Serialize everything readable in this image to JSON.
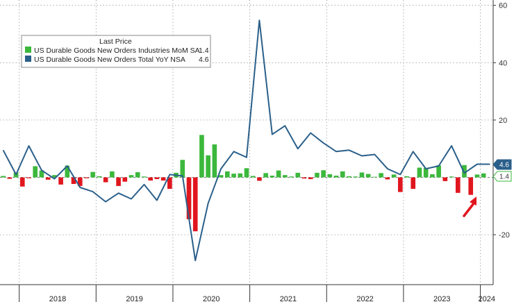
{
  "chart_data": {
    "type": "bar+line",
    "legend": {
      "title": "Last Price",
      "placement": "top-left",
      "entries": [
        {
          "name": "US Durable Goods New Orders Industries MoM SA",
          "value": "1.4",
          "color": "#3cb83c"
        },
        {
          "name": "US Durable Goods New Orders Total YoY NSA",
          "value": "4.6",
          "color": "#2a5f8a"
        }
      ]
    },
    "y_axis": {
      "position": "right",
      "ylim": [
        -37,
        62
      ],
      "ticks": [
        "60",
        "40",
        "20",
        "-20"
      ],
      "grid": true
    },
    "x_axis": {
      "years": [
        "2018",
        "2019",
        "2020",
        "2021",
        "2022",
        "2023",
        "2024"
      ],
      "start": "2017-10",
      "end": "2024-02"
    },
    "series": [
      {
        "name": "US Durable Goods New Orders Industries MoM SA",
        "type": "bar",
        "positive_color": "#3cb83c",
        "negative_color": "#e0161e",
        "x": [
          "2017-10",
          "2017-11",
          "2017-12",
          "2018-01",
          "2018-02",
          "2018-03",
          "2018-04",
          "2018-05",
          "2018-06",
          "2018-07",
          "2018-08",
          "2018-09",
          "2018-10",
          "2018-11",
          "2018-12",
          "2019-01",
          "2019-02",
          "2019-03",
          "2019-04",
          "2019-05",
          "2019-06",
          "2019-07",
          "2019-08",
          "2019-09",
          "2019-10",
          "2019-11",
          "2019-12",
          "2020-01",
          "2020-02",
          "2020-03",
          "2020-04",
          "2020-05",
          "2020-06",
          "2020-07",
          "2020-08",
          "2020-09",
          "2020-10",
          "2020-11",
          "2020-12",
          "2021-01",
          "2021-02",
          "2021-03",
          "2021-04",
          "2021-05",
          "2021-06",
          "2021-07",
          "2021-08",
          "2021-09",
          "2021-10",
          "2021-11",
          "2021-12",
          "2022-01",
          "2022-02",
          "2022-03",
          "2022-04",
          "2022-05",
          "2022-06",
          "2022-07",
          "2022-08",
          "2022-09",
          "2022-10",
          "2022-11",
          "2022-12",
          "2023-01",
          "2023-02",
          "2023-03",
          "2023-04",
          "2023-05",
          "2023-06",
          "2023-07",
          "2023-08",
          "2023-09",
          "2023-10",
          "2023-11",
          "2023-12",
          "2024-01"
        ],
        "values": [
          0.5,
          -0.5,
          1.7,
          -3.2,
          -0.3,
          3.9,
          2.4,
          -0.8,
          0.8,
          -2.5,
          4.1,
          -2.3,
          -3.0,
          -0.3,
          1.9,
          0.4,
          -1.7,
          2.1,
          -3.0,
          -1.5,
          0.8,
          1.8,
          0.3,
          -1.1,
          -0.6,
          -1.1,
          -4.0,
          1.6,
          6.1,
          -14.6,
          -18.8,
          14.8,
          7.7,
          11.5,
          0.8,
          2.1,
          1.3,
          1.4,
          3.2,
          0.5,
          -1.2,
          1.5,
          0.6,
          2.4,
          0.8,
          0.3,
          1.6,
          -0.4,
          -0.6,
          1.6,
          2.5,
          1.1,
          0.6,
          2.1,
          0.4,
          0.3,
          1.7,
          1.2,
          0.2,
          1.5,
          -0.7,
          1.0,
          -5.1,
          0.4,
          -4.0,
          3.4,
          3.3,
          1.1,
          4.2,
          -1.3,
          0.3,
          -5.4,
          4.3,
          -6.1,
          1.0,
          1.4
        ]
      },
      {
        "name": "US Durable Goods New Orders Total YoY NSA",
        "type": "line",
        "color": "#2a5f8a",
        "x": [
          "2017-10",
          "2017-12",
          "2018-02",
          "2018-04",
          "2018-06",
          "2018-08",
          "2018-10",
          "2018-12",
          "2019-02",
          "2019-04",
          "2019-06",
          "2019-08",
          "2019-10",
          "2019-12",
          "2020-02",
          "2020-04",
          "2020-06",
          "2020-08",
          "2020-10",
          "2020-12",
          "2021-02",
          "2021-04",
          "2021-06",
          "2021-08",
          "2021-10",
          "2021-12",
          "2022-02",
          "2022-04",
          "2022-06",
          "2022-08",
          "2022-10",
          "2022-12",
          "2023-02",
          "2023-04",
          "2023-06",
          "2023-08",
          "2023-10",
          "2023-12",
          "2024-02"
        ],
        "values": [
          9.5,
          1.0,
          11.0,
          2.5,
          -0.5,
          4.0,
          -3.5,
          -5.0,
          -8.5,
          -5.5,
          -7.5,
          -2.5,
          -8.0,
          1.0,
          0.5,
          -29.0,
          -9.0,
          3.0,
          9.0,
          7.0,
          54.8,
          15.0,
          18.0,
          10.0,
          15.5,
          12.0,
          9.0,
          9.5,
          7.5,
          8.0,
          3.0,
          1.0,
          9.0,
          3.0,
          4.0,
          11.0,
          1.5,
          4.6,
          4.6
        ]
      }
    ],
    "last_value_tags": [
      {
        "value": "4.6",
        "color": "#2a5f8a"
      },
      {
        "value": "1.4",
        "color": "#3cb83c"
      }
    ],
    "annotation": {
      "type": "arrow",
      "color": "#e0161e",
      "points_to": "2024-01"
    }
  }
}
